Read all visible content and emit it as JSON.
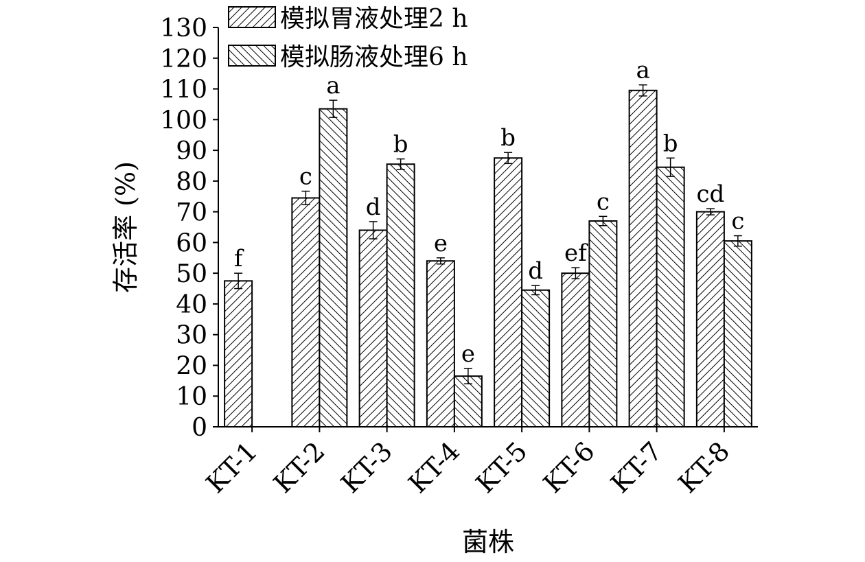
{
  "chart_data": {
    "type": "bar",
    "title": "",
    "xlabel": "菌株",
    "ylabel": "存活率 (%)",
    "ylim": [
      0,
      130
    ],
    "yticks": [
      0,
      10,
      20,
      30,
      40,
      50,
      60,
      70,
      80,
      90,
      100,
      110,
      120,
      130
    ],
    "categories": [
      "KT-1",
      "KT-2",
      "KT-3",
      "KT-4",
      "KT-5",
      "KT-6",
      "KT-7",
      "KT-8"
    ],
    "legend_position": "top-left",
    "grid": false,
    "series": [
      {
        "name": "模拟胃液处理2 h",
        "pattern": "diagonal-up",
        "values": [
          47.5,
          74.5,
          64,
          54,
          87.5,
          50,
          109.5,
          70
        ],
        "errors": [
          2.5,
          2.2,
          2.8,
          1,
          1.8,
          1.8,
          1.8,
          1
        ],
        "letters": [
          "f",
          "c",
          "d",
          "e",
          "b",
          "ef",
          "a",
          "cd"
        ]
      },
      {
        "name": "模拟肠液处理6 h",
        "pattern": "diagonal-down",
        "values": [
          null,
          103.5,
          85.5,
          16.5,
          44.5,
          67,
          84.5,
          60.5
        ],
        "errors": [
          null,
          2.8,
          1.7,
          2.5,
          1.5,
          1.5,
          3,
          1.7
        ],
        "letters": [
          "",
          "a",
          "b",
          "e",
          "d",
          "c",
          "b",
          "c"
        ]
      }
    ],
    "colors": {
      "bar_fill": "#ffffff",
      "hatch": "#000000",
      "axis": "#000000"
    }
  }
}
